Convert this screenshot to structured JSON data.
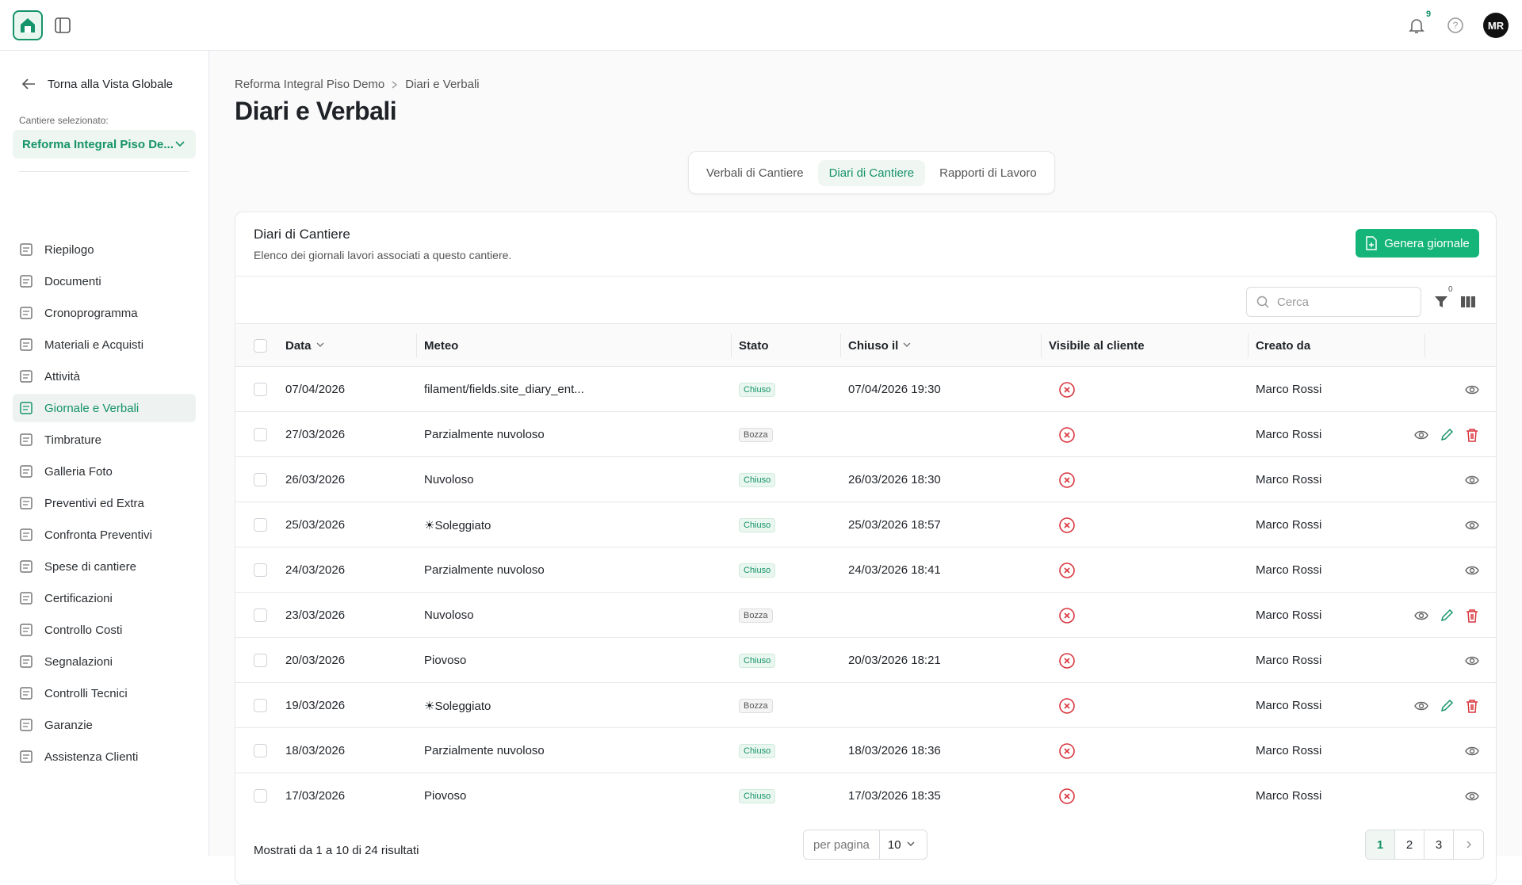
{
  "header": {
    "notifications": "9",
    "avatar": "MR"
  },
  "sidebar": {
    "back": "Torna alla Vista Globale",
    "site_label": "Cantiere selezionato:",
    "site_name": "Reforma Integral Piso De...",
    "active": 5,
    "items": [
      "Riepilogo",
      "Documenti",
      "Cronoprogramma",
      "Materiali e Acquisti",
      "Attività",
      "Giornale e Verbali",
      "Timbrature",
      "Galleria Foto",
      "Preventivi ed Extra",
      "Confronta Preventivi",
      "Spese di cantiere",
      "Certificazioni",
      "Controllo Costi",
      "Segnalazioni",
      "Controlli Tecnici",
      "Garanzie",
      "Assistenza Clienti"
    ]
  },
  "breadcrumb": [
    "Reforma Integral Piso Demo",
    "Diari e Verbali"
  ],
  "title": "Diari e Verbali",
  "tabs": {
    "active": 1,
    "items": [
      "Verbali di Cantiere",
      "Diari di Cantiere",
      "Rapporti di Lavoro"
    ]
  },
  "panel": {
    "title": "Diari di Cantiere",
    "subtitle": "Elenco dei giornali lavori associati a questo cantiere.",
    "button": "Genera giornale",
    "search": "Cerca",
    "filters": "0"
  },
  "table": {
    "columns": [
      "Data",
      "Meteo",
      "Stato",
      "Chiuso il",
      "Visibile al cliente",
      "Creato da"
    ],
    "rows": [
      {
        "date": "07/04/2026",
        "meteo": "filament/fields.site_diary_ent...",
        "status": "Chiuso",
        "closed": "07/04/2026 19:30",
        "author": "Marco Rossi",
        "editable": false
      },
      {
        "date": "27/03/2026",
        "meteo": "Parzialmente nuvoloso",
        "status": "Bozza",
        "closed": "",
        "author": "Marco Rossi",
        "editable": true
      },
      {
        "date": "26/03/2026",
        "meteo": "Nuvoloso",
        "status": "Chiuso",
        "closed": "26/03/2026 18:30",
        "author": "Marco Rossi",
        "editable": false
      },
      {
        "date": "25/03/2026",
        "meteo": "☀Soleggiato",
        "status": "Chiuso",
        "closed": "25/03/2026 18:57",
        "author": "Marco Rossi",
        "editable": false
      },
      {
        "date": "24/03/2026",
        "meteo": "Parzialmente nuvoloso",
        "status": "Chiuso",
        "closed": "24/03/2026 18:41",
        "author": "Marco Rossi",
        "editable": false
      },
      {
        "date": "23/03/2026",
        "meteo": "Nuvoloso",
        "status": "Bozza",
        "closed": "",
        "author": "Marco Rossi",
        "editable": true
      },
      {
        "date": "20/03/2026",
        "meteo": "Piovoso",
        "status": "Chiuso",
        "closed": "20/03/2026 18:21",
        "author": "Marco Rossi",
        "editable": false
      },
      {
        "date": "19/03/2026",
        "meteo": "☀Soleggiato",
        "status": "Bozza",
        "closed": "",
        "author": "Marco Rossi",
        "editable": true
      },
      {
        "date": "18/03/2026",
        "meteo": "Parzialmente nuvoloso",
        "status": "Chiuso",
        "closed": "18/03/2026 18:36",
        "author": "Marco Rossi",
        "editable": false
      },
      {
        "date": "17/03/2026",
        "meteo": "Piovoso",
        "status": "Chiuso",
        "closed": "17/03/2026 18:35",
        "author": "Marco Rossi",
        "editable": false
      }
    ]
  },
  "footer": {
    "summary": "Mostrati da 1 a 10 di 24 risultati",
    "per_page_label": "per pagina",
    "per_page": 10,
    "current": 0,
    "pages": [
      "1",
      "2",
      "3"
    ]
  }
}
